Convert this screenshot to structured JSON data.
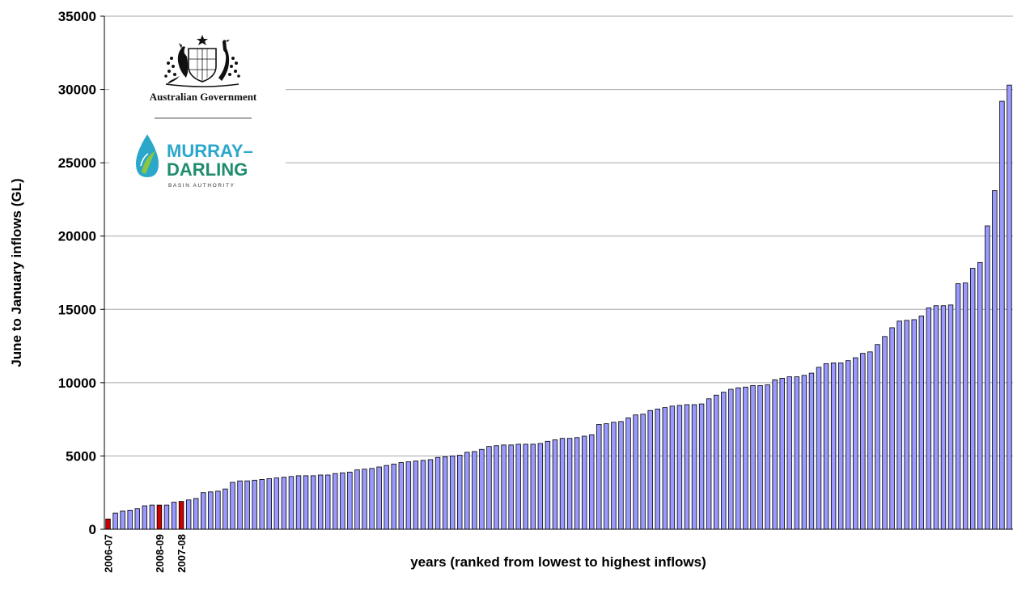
{
  "logos": {
    "government_text": "Australian Government",
    "mdba_line1": "MURRAY–",
    "mdba_line2": "DARLING",
    "mdba_line3": "BASIN AUTHORITY"
  },
  "colors": {
    "bar_fill": "#9999FF",
    "highlight_fill": "#CC0000",
    "bar_stroke": "#000000",
    "grid": "#A6A6A6",
    "mdba_teal": "#2BA7C9",
    "mdba_green": "#1E8C6E"
  },
  "chart_data": {
    "type": "bar",
    "xlabel": "years (ranked from lowest to highest inflows)",
    "ylabel": "June to January inflows (GL)",
    "ylim": [
      0,
      35000
    ],
    "yticks": [
      0,
      5000,
      10000,
      15000,
      20000,
      25000,
      30000,
      35000
    ],
    "grid": true,
    "legend": "none",
    "highlighted_labels": [
      {
        "index": 0,
        "label": "2006-07"
      },
      {
        "index": 7,
        "label": "2008-09"
      },
      {
        "index": 10,
        "label": "2007-08"
      }
    ],
    "values": [
      700,
      1100,
      1250,
      1300,
      1400,
      1600,
      1650,
      1650,
      1650,
      1850,
      1900,
      2000,
      2100,
      2500,
      2550,
      2600,
      2750,
      3200,
      3300,
      3300,
      3350,
      3400,
      3450,
      3500,
      3550,
      3600,
      3650,
      3650,
      3650,
      3700,
      3700,
      3800,
      3850,
      3900,
      4050,
      4100,
      4150,
      4250,
      4350,
      4450,
      4550,
      4600,
      4650,
      4700,
      4750,
      4900,
      4950,
      5000,
      5050,
      5250,
      5300,
      5450,
      5650,
      5700,
      5750,
      5750,
      5800,
      5800,
      5800,
      5850,
      6000,
      6100,
      6200,
      6200,
      6250,
      6350,
      6450,
      7150,
      7200,
      7300,
      7350,
      7600,
      7800,
      7850,
      8100,
      8200,
      8300,
      8400,
      8450,
      8500,
      8500,
      8550,
      8900,
      9150,
      9350,
      9550,
      9650,
      9700,
      9800,
      9800,
      9850,
      10200,
      10300,
      10400,
      10400,
      10500,
      10650,
      11050,
      11300,
      11350,
      11350,
      11500,
      11700,
      12000,
      12100,
      12600,
      13150,
      13750,
      14200,
      14250,
      14300,
      14550,
      15100,
      15250,
      15250,
      15300,
      16750,
      16800,
      17800,
      18200,
      20700,
      23100,
      29200,
      30300
    ]
  }
}
